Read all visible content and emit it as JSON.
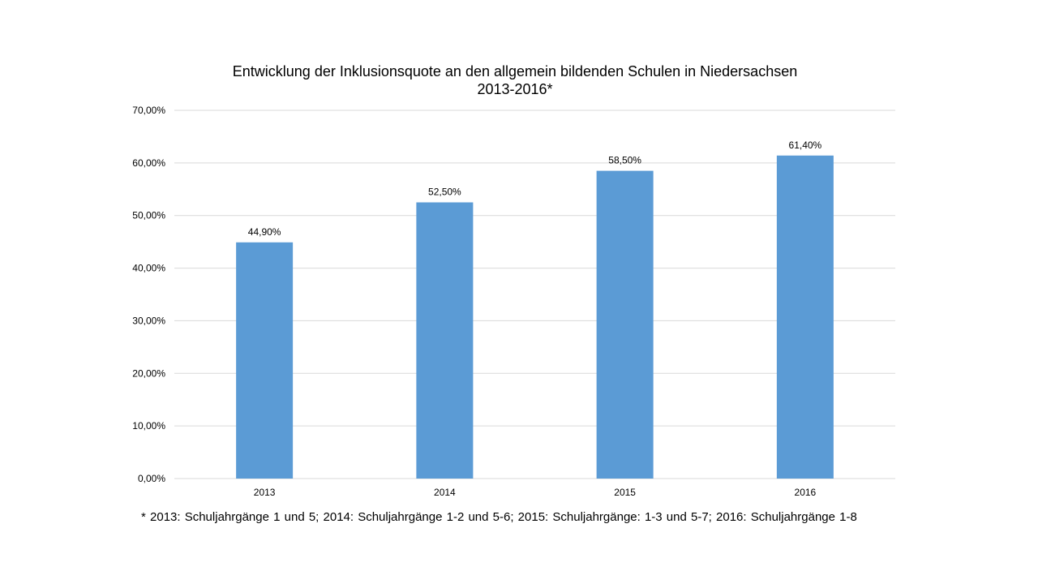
{
  "chart_data": {
    "type": "bar",
    "title": "Entwicklung der Inklusionsquote an den allgemein bildenden Schulen in Niedersachsen",
    "subtitle": "2013-2016*",
    "categories": [
      "2013",
      "2014",
      "2015",
      "2016"
    ],
    "values": [
      44.9,
      52.5,
      58.5,
      61.4
    ],
    "data_labels": [
      "44,90%",
      "52,50%",
      "58,50%",
      "61,40%"
    ],
    "y_ticks": [
      0,
      10,
      20,
      30,
      40,
      50,
      60,
      70
    ],
    "y_tick_labels": [
      "0,00%",
      "10,00%",
      "20,00%",
      "30,00%",
      "40,00%",
      "50,00%",
      "60,00%",
      "70,00%"
    ],
    "ylim": [
      0,
      70
    ],
    "xlabel": "",
    "ylabel": "",
    "grid": true,
    "legend": "none",
    "bar_color": "#5b9bd5",
    "gridline_color": "#d9d9d9",
    "footnote": "* 2013: Schuljahrgänge  1 und 5; 2014: Schuljahrgänge  1-2 und 5-6; 2015: Schuljahrgänge:  1-3 und 5-7; 2016: Schuljahrgänge  1-8"
  }
}
